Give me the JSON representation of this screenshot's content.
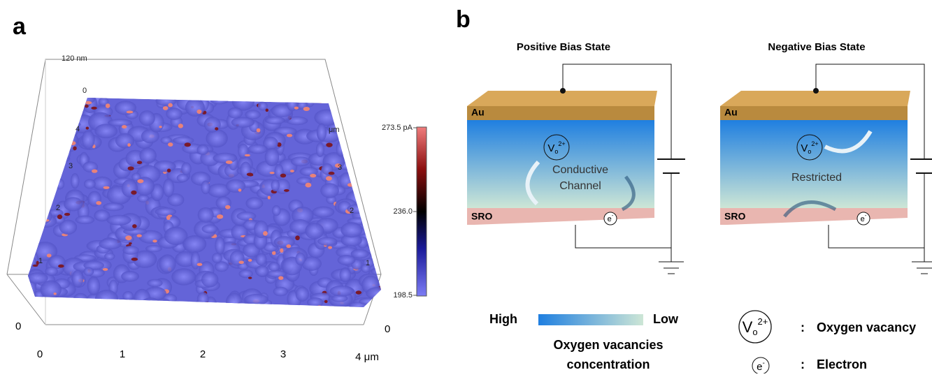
{
  "panel_a": {
    "label": "a",
    "z_axis": {
      "top": "120 nm",
      "zero": "0"
    },
    "y_axis_left": [
      "4",
      "3",
      "2",
      "1"
    ],
    "y_unit": "μm",
    "y_axis_right": [
      "3",
      "2",
      "1"
    ],
    "front_zero_left": "0",
    "front_zero_right": "0",
    "x_axis": [
      "0",
      "1",
      "2",
      "3",
      "4 μm"
    ],
    "colorbar": {
      "max": "273.5 pA",
      "mid": "236.0",
      "min": "198.5"
    }
  },
  "panel_b": {
    "label": "b",
    "positive": {
      "title": "Positive Bias State",
      "top": "Au",
      "bottom": "SRO",
      "channel": [
        "Conductive",
        "Channel"
      ]
    },
    "negative": {
      "title": "Negative Bias State",
      "top": "Au",
      "bottom": "SRO",
      "channel": "Restricted"
    },
    "vacancy_symbol": {
      "base": "V",
      "sub": "o",
      "sup": "2+"
    },
    "electron_symbol": {
      "base": "e",
      "sup": "-"
    },
    "legend": {
      "high": "High",
      "low": "Low",
      "caption": [
        "Oxygen vacancies",
        "concentration"
      ],
      "separator": ":",
      "vacancy": "Oxygen vacancy",
      "electron": "Electron"
    }
  }
}
